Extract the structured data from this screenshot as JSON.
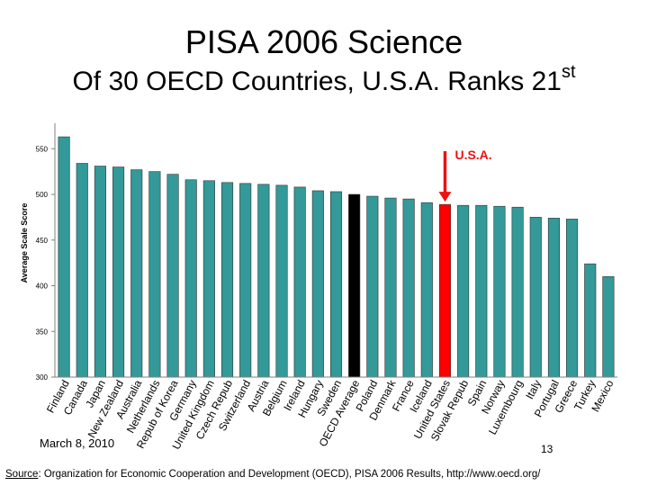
{
  "slide": {
    "title": "PISA 2006 Science",
    "subtitle_main": "Of 30 OECD Countries, U.S.A. Ranks 21",
    "subtitle_sup": "st",
    "date": "March 8, 2010",
    "page_number": "13",
    "source_label": "Source",
    "source_text": ": Organization for Economic Cooperation and Development (OECD), PISA 2006 Results, http://www.oecd.org/"
  },
  "chart_data": {
    "type": "bar",
    "title": "",
    "xlabel": "",
    "ylabel": "Average Scale Score",
    "ylim": [
      300,
      565
    ],
    "yticks": [
      300,
      350,
      400,
      450,
      500,
      550
    ],
    "categories": [
      "Finland",
      "Canada",
      "Japan",
      "New Zealand",
      "Australia",
      "Netherlands",
      "Repub of Korea",
      "Germany",
      "United Kingdom",
      "Czech Repub",
      "Switzerland",
      "Austria",
      "Belgium",
      "Ireland",
      "Hungary",
      "Sweden",
      "OECD Average",
      "Poland",
      "Denmark",
      "France",
      "Iceland",
      "United States",
      "Slovak Repub",
      "Spain",
      "Norway",
      "Luxembourg",
      "Italy",
      "Portugal",
      "Greece",
      "Turkey",
      "Mexico"
    ],
    "values": [
      563,
      534,
      531,
      530,
      527,
      525,
      522,
      516,
      515,
      513,
      512,
      511,
      510,
      508,
      504,
      503,
      500,
      498,
      496,
      495,
      491,
      489,
      488,
      488,
      487,
      486,
      475,
      474,
      473,
      424,
      410
    ],
    "colors": {
      "default": "#339999",
      "oecd_average": "#000000",
      "highlight": "#ff0000",
      "arrow": "#ee1111"
    },
    "highlight_category": "United States",
    "average_category": "OECD Average",
    "annotation": "U.S.A."
  }
}
